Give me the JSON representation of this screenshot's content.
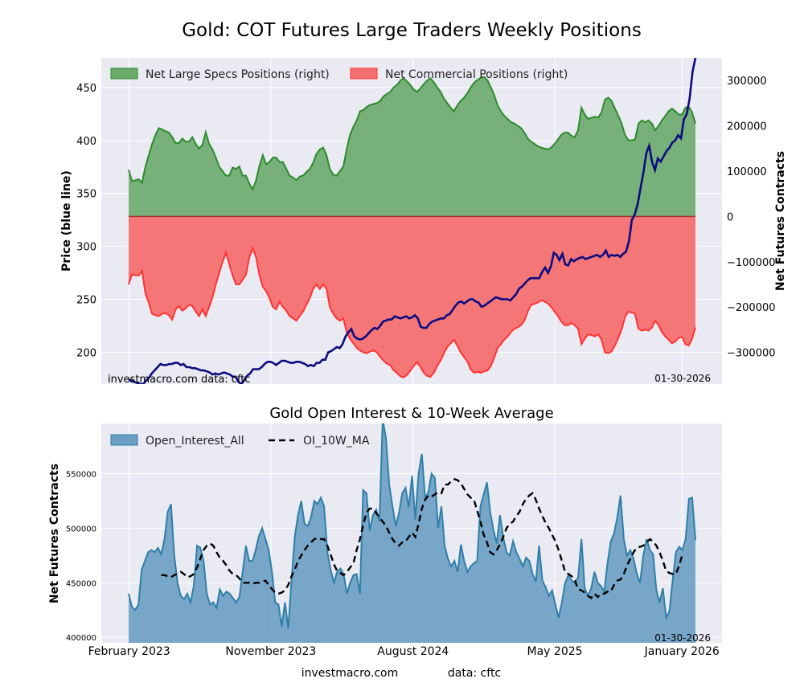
{
  "figure": {
    "title": "Gold: COT Futures Large Traders Weekly Positions",
    "footer_site": "investmacro.com",
    "footer_data": "data: cftc"
  },
  "colors": {
    "price": "#0b0b80",
    "specs_fill": "#6aaa6a",
    "specs_line": "#2e8b2e",
    "comm_fill": "#f47070",
    "comm_line": "#ff3333",
    "oi_fill": "#6a9ec4",
    "oi_line": "#2f7fa8",
    "ma_line": "#000000",
    "panel_bg": "#eaeaf2"
  },
  "chart_data": [
    {
      "type": "area",
      "title": "Gold: COT Futures Large Traders Weekly Positions",
      "ylabel_left": "Price (blue line)",
      "ylabel_right": "Net Futures Contracts",
      "ylim_left": [
        170,
        478
      ],
      "ylim_right": [
        -370000,
        350000
      ],
      "yticks_left": [
        200,
        250,
        300,
        350,
        400,
        450
      ],
      "yticks_right": [
        -300000,
        -200000,
        -100000,
        0,
        100000,
        200000,
        300000
      ],
      "ytick_labels_right": [
        "−300000",
        "−200000",
        "−100000",
        "0",
        "100000",
        "200000",
        "300000"
      ],
      "legend": [
        "Net Large Specs Positions (right)",
        "Net Commercial Positions (right)"
      ],
      "legend_position": "top-left",
      "grid": true,
      "watermark_left": "investmacro.com    data: cftc",
      "date_label": "01-30-2026",
      "x_start": "2023-01-31",
      "x_end": "2026-01-27",
      "specs": [
        103000,
        78000,
        80000,
        82000,
        75000,
        110000,
        135000,
        160000,
        180000,
        195000,
        192000,
        188000,
        185000,
        175000,
        162000,
        162000,
        172000,
        165000,
        165000,
        175000,
        160000,
        150000,
        158000,
        186000,
        160000,
        148000,
        130000,
        110000,
        100000,
        90000,
        90000,
        108000,
        105000,
        110000,
        90000,
        90000,
        72000,
        60000,
        80000,
        112000,
        135000,
        115000,
        120000,
        130000,
        130000,
        120000,
        120000,
        105000,
        90000,
        86000,
        80000,
        88000,
        90000,
        98000,
        105000,
        118000,
        138000,
        148000,
        152000,
        135000,
        105000,
        92000,
        90000,
        100000,
        110000,
        148000,
        180000,
        198000,
        212000,
        232000,
        235000,
        242000,
        246000,
        248000,
        250000,
        255000,
        265000,
        270000,
        275000,
        285000,
        290000,
        300000,
        305000,
        298000,
        290000,
        280000,
        275000,
        283000,
        292000,
        300000,
        305000,
        296000,
        285000,
        275000,
        260000,
        250000,
        240000,
        232000,
        245000,
        255000,
        262000,
        272000,
        285000,
        295000,
        301000,
        306000,
        308000,
        300000,
        285000,
        268000,
        245000,
        232000,
        222000,
        215000,
        208000,
        205000,
        200000,
        195000,
        185000,
        172000,
        165000,
        160000,
        155000,
        152000,
        150000,
        148000,
        152000,
        160000,
        170000,
        180000,
        185000,
        185000,
        178000,
        175000,
        190000,
        240000,
        225000,
        215000,
        218000,
        220000,
        218000,
        230000,
        258000,
        262000,
        255000,
        238000,
        222000,
        205000,
        180000,
        168000,
        168000,
        170000,
        205000,
        212000,
        208000,
        212000,
        205000,
        190000,
        200000,
        212000,
        222000,
        232000,
        238000,
        232000,
        225000,
        225000,
        240000,
        242000,
        230000,
        205000
      ],
      "commercials": [
        -150000,
        -128000,
        -130000,
        -130000,
        -120000,
        -170000,
        -190000,
        -215000,
        -218000,
        -220000,
        -215000,
        -213000,
        -218000,
        -228000,
        -205000,
        -198000,
        -208000,
        -203000,
        -195000,
        -198000,
        -210000,
        -220000,
        -205000,
        -220000,
        -200000,
        -178000,
        -150000,
        -125000,
        -100000,
        -80000,
        -105000,
        -130000,
        -150000,
        -150000,
        -140000,
        -128000,
        -90000,
        -70000,
        -90000,
        -130000,
        -155000,
        -165000,
        -180000,
        -200000,
        -205000,
        -188000,
        -200000,
        -208000,
        -220000,
        -225000,
        -230000,
        -220000,
        -210000,
        -195000,
        -180000,
        -160000,
        -150000,
        -160000,
        -150000,
        -160000,
        -200000,
        -215000,
        -225000,
        -230000,
        -225000,
        -255000,
        -270000,
        -280000,
        -290000,
        -296000,
        -300000,
        -302000,
        -298000,
        -296000,
        -300000,
        -310000,
        -318000,
        -325000,
        -328000,
        -340000,
        -345000,
        -353000,
        -355000,
        -350000,
        -340000,
        -330000,
        -322000,
        -332000,
        -345000,
        -352000,
        -354000,
        -345000,
        -330000,
        -318000,
        -302000,
        -288000,
        -280000,
        -272000,
        -285000,
        -300000,
        -310000,
        -320000,
        -338000,
        -345000,
        -343000,
        -345000,
        -342000,
        -340000,
        -330000,
        -312000,
        -290000,
        -282000,
        -272000,
        -265000,
        -255000,
        -248000,
        -245000,
        -240000,
        -230000,
        -210000,
        -195000,
        -193000,
        -190000,
        -185000,
        -188000,
        -192000,
        -200000,
        -210000,
        -220000,
        -232000,
        -240000,
        -240000,
        -235000,
        -240000,
        -248000,
        -282000,
        -270000,
        -260000,
        -262000,
        -265000,
        -260000,
        -272000,
        -300000,
        -302000,
        -298000,
        -285000,
        -268000,
        -250000,
        -222000,
        -210000,
        -212000,
        -215000,
        -248000,
        -252000,
        -250000,
        -252000,
        -245000,
        -230000,
        -240000,
        -255000,
        -265000,
        -272000,
        -280000,
        -276000,
        -268000,
        -266000,
        -282000,
        -285000,
        -270000,
        -245000
      ],
      "price": [
        174,
        173,
        172,
        171,
        170,
        170,
        173,
        176,
        180,
        183,
        186,
        189,
        188,
        188,
        189,
        189,
        190,
        190,
        188,
        189,
        186,
        186,
        185,
        185,
        184,
        183,
        183,
        182,
        181,
        179,
        180,
        179,
        180,
        181,
        180,
        179,
        177,
        177,
        172,
        170,
        174,
        178,
        180,
        184,
        184,
        184,
        186,
        189,
        191,
        191,
        190,
        188,
        190,
        192,
        192,
        191,
        190,
        190,
        191,
        191,
        190,
        189,
        187,
        188,
        187,
        190,
        190,
        193,
        193,
        200,
        201,
        203,
        205,
        204,
        208,
        215,
        219,
        222,
        215,
        213,
        212,
        213,
        215,
        218,
        221,
        223,
        222,
        225,
        229,
        230,
        231,
        231,
        234,
        233,
        232,
        233,
        234,
        232,
        233,
        235,
        232,
        224,
        223,
        223,
        227,
        229,
        230,
        231,
        232,
        232,
        235,
        236,
        240,
        244,
        247,
        248,
        246,
        248,
        250,
        250,
        248,
        247,
        243,
        244,
        246,
        248,
        250,
        252,
        251,
        250,
        250,
        250,
        249,
        252,
        255,
        260,
        262,
        265,
        268,
        270,
        270,
        270,
        270,
        276,
        280,
        275,
        281,
        294,
        292,
        287,
        293,
        283,
        282,
        288,
        286,
        288,
        289,
        290,
        288,
        289,
        290,
        291,
        292,
        290,
        292,
        296,
        290,
        292,
        291,
        292,
        290,
        293,
        295,
        305,
        325,
        330,
        340,
        355,
        370,
        388,
        395,
        380,
        372,
        383,
        380,
        385,
        390,
        393,
        398,
        400,
        405,
        402,
        420,
        425,
        440,
        465,
        478
      ]
    },
    {
      "type": "area",
      "title": "Gold Open Interest & 10-Week Average",
      "ylabel": "Net Futures Contracts",
      "ylim": [
        395000,
        596000
      ],
      "yticks": [
        400000,
        450000,
        500000,
        550000
      ],
      "legend": [
        "Open_Interest_All",
        "OI_10W_MA"
      ],
      "legend_position": "top-left",
      "grid": true,
      "date_label": "01-30-2026",
      "x_start": "2023-01-31",
      "x_end": "2026-01-27",
      "x_tick_labels": [
        "February 2023",
        "November 2023",
        "August 2024",
        "May 2025",
        "January 2026"
      ],
      "x_tick_dates": [
        "2023-02-01",
        "2023-11-01",
        "2024-08-01",
        "2025-05-01",
        "2026-01-01"
      ],
      "open_interest": [
        440000,
        428000,
        425000,
        430000,
        462000,
        470000,
        478000,
        480000,
        478000,
        482000,
        476000,
        490000,
        515000,
        522000,
        475000,
        450000,
        438000,
        435000,
        440000,
        432000,
        447000,
        484000,
        482000,
        470000,
        440000,
        430000,
        432000,
        427000,
        444000,
        438000,
        442000,
        440000,
        436000,
        432000,
        437000,
        460000,
        484000,
        470000,
        470000,
        480000,
        493000,
        500000,
        490000,
        480000,
        460000,
        432000,
        430000,
        410000,
        432000,
        408000,
        452000,
        492000,
        512000,
        525000,
        504000,
        502000,
        510000,
        525000,
        522000,
        528000,
        520000,
        478000,
        462000,
        450000,
        460000,
        463000,
        458000,
        440000,
        450000,
        457000,
        458000,
        440000,
        535000,
        532000,
        498000,
        512000,
        517000,
        506000,
        600000,
        582000,
        540000,
        520000,
        502000,
        514000,
        532000,
        537000,
        519000,
        548000,
        508000,
        550000,
        568000,
        528000,
        533000,
        550000,
        546000,
        500000,
        520000,
        484000,
        472000,
        465000,
        470000,
        460000,
        485000,
        470000,
        460000,
        465000,
        468000,
        470000,
        520000,
        531000,
        542000,
        515000,
        498000,
        486000,
        512000,
        492000,
        478000,
        475000,
        488000,
        478000,
        472000,
        465000,
        473000,
        470000,
        458000,
        451000,
        484000,
        452000,
        446000,
        438000,
        443000,
        430000,
        418000,
        432000,
        450000,
        457000,
        452000,
        450000,
        455000,
        490000,
        445000,
        438000,
        445000,
        460000,
        450000,
        447000,
        442000,
        468000,
        488000,
        495000,
        510000,
        530000,
        490000,
        475000,
        480000,
        472000,
        458000,
        450000,
        475000,
        490000,
        480000,
        476000,
        443000,
        432000,
        445000,
        418000,
        424000,
        452000,
        478000,
        483000,
        480000,
        490000,
        527000,
        528000,
        489000
      ],
      "ma_10w": [
        457000,
        457000,
        456000,
        455000,
        457000,
        458000,
        460000,
        458000,
        455000,
        456000,
        458000,
        464000,
        472000,
        480000,
        484000,
        486000,
        484000,
        478000,
        473000,
        470000,
        466000,
        461000,
        458000,
        457000,
        454000,
        450000,
        450000,
        450000,
        449000,
        450000,
        450000,
        451000,
        452000,
        448000,
        444000,
        441000,
        440000,
        441000,
        443000,
        448000,
        456000,
        462000,
        470000,
        475000,
        480000,
        484000,
        487000,
        490000,
        491000,
        490000,
        490000,
        484000,
        476000,
        467000,
        461000,
        459000,
        457000,
        460000,
        464000,
        468000,
        480000,
        490000,
        503000,
        514000,
        518000,
        518000,
        514000,
        510000,
        506000,
        502000,
        496000,
        490000,
        486000,
        484000,
        487000,
        488000,
        492000,
        496000,
        492000,
        504000,
        518000,
        526000,
        530000,
        529000,
        531000,
        533000,
        532000,
        540000,
        540000,
        543000,
        545000,
        544000,
        541000,
        536000,
        531000,
        528000,
        526000,
        516000,
        506000,
        494000,
        487000,
        478000,
        476000,
        480000,
        485000,
        492000,
        500000,
        504000,
        506000,
        511000,
        515000,
        522000,
        527000,
        530000,
        532000,
        526000,
        518000,
        511000,
        505000,
        500000,
        494000,
        488000,
        480000,
        470000,
        460000,
        458000,
        456000,
        452000,
        444000,
        443000,
        441000,
        438000,
        436000,
        440000,
        437000,
        440000,
        440000,
        442000,
        442000,
        448000,
        452000,
        453000,
        458000,
        466000,
        472000,
        478000,
        482000,
        483000,
        484000,
        487000,
        490000,
        488000,
        484000,
        478000,
        470000,
        461000,
        459000,
        458000,
        458000,
        466000,
        476000
      ],
      "ma_start_index": 10
    }
  ]
}
